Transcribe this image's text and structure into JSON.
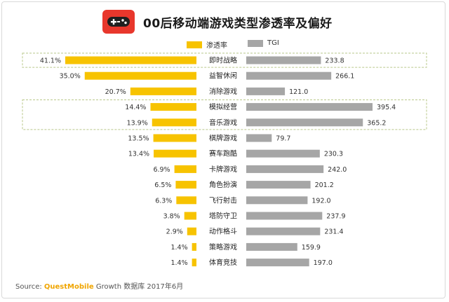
{
  "title": "00后移动端游戏类型渗透率及偏好",
  "legend": {
    "penetration": "渗透率",
    "tgi": "TGI"
  },
  "colors": {
    "penetration": "#f7c300",
    "tgi": "#a6a6a6",
    "highlight_border": "#b9c88a",
    "logo": "#e8372c"
  },
  "source": {
    "prefix": "Source:",
    "brand": "QuestMobile",
    "suffix": "Growth 数据库 2017年6月"
  },
  "chart_data": {
    "type": "bar",
    "categories": [
      "即时战略",
      "益智休闲",
      "消除游戏",
      "模拟经营",
      "音乐游戏",
      "棋牌游戏",
      "赛车跑酷",
      "卡牌游戏",
      "角色扮演",
      "飞行射击",
      "塔防守卫",
      "动作格斗",
      "策略游戏",
      "体育竞技"
    ],
    "series": [
      {
        "name": "渗透率",
        "values": [
          41.1,
          35.0,
          20.7,
          14.4,
          13.9,
          13.5,
          13.4,
          6.9,
          6.5,
          6.3,
          3.8,
          2.9,
          1.4,
          1.4
        ],
        "labels": [
          "41.1%",
          "35.0%",
          "20.7%",
          "14.4%",
          "13.9%",
          "13.5%",
          "13.4%",
          "6.9%",
          "6.5%",
          "6.3%",
          "3.8%",
          "2.9%",
          "1.4%",
          "1.4%"
        ]
      },
      {
        "name": "TGI",
        "values": [
          233.8,
          266.1,
          121.0,
          395.4,
          365.2,
          79.7,
          230.3,
          242.0,
          201.2,
          192.0,
          237.9,
          231.4,
          159.9,
          197.0
        ],
        "labels": [
          "233.8",
          "266.1",
          "121.0",
          "395.4",
          "365.2",
          "79.7",
          "230.3",
          "242.0",
          "201.2",
          "192.0",
          "237.9",
          "231.4",
          "159.9",
          "197.0"
        ]
      }
    ],
    "highlighted_groups": [
      [
        "即时战略"
      ],
      [
        "模拟经营",
        "音乐游戏"
      ]
    ]
  }
}
